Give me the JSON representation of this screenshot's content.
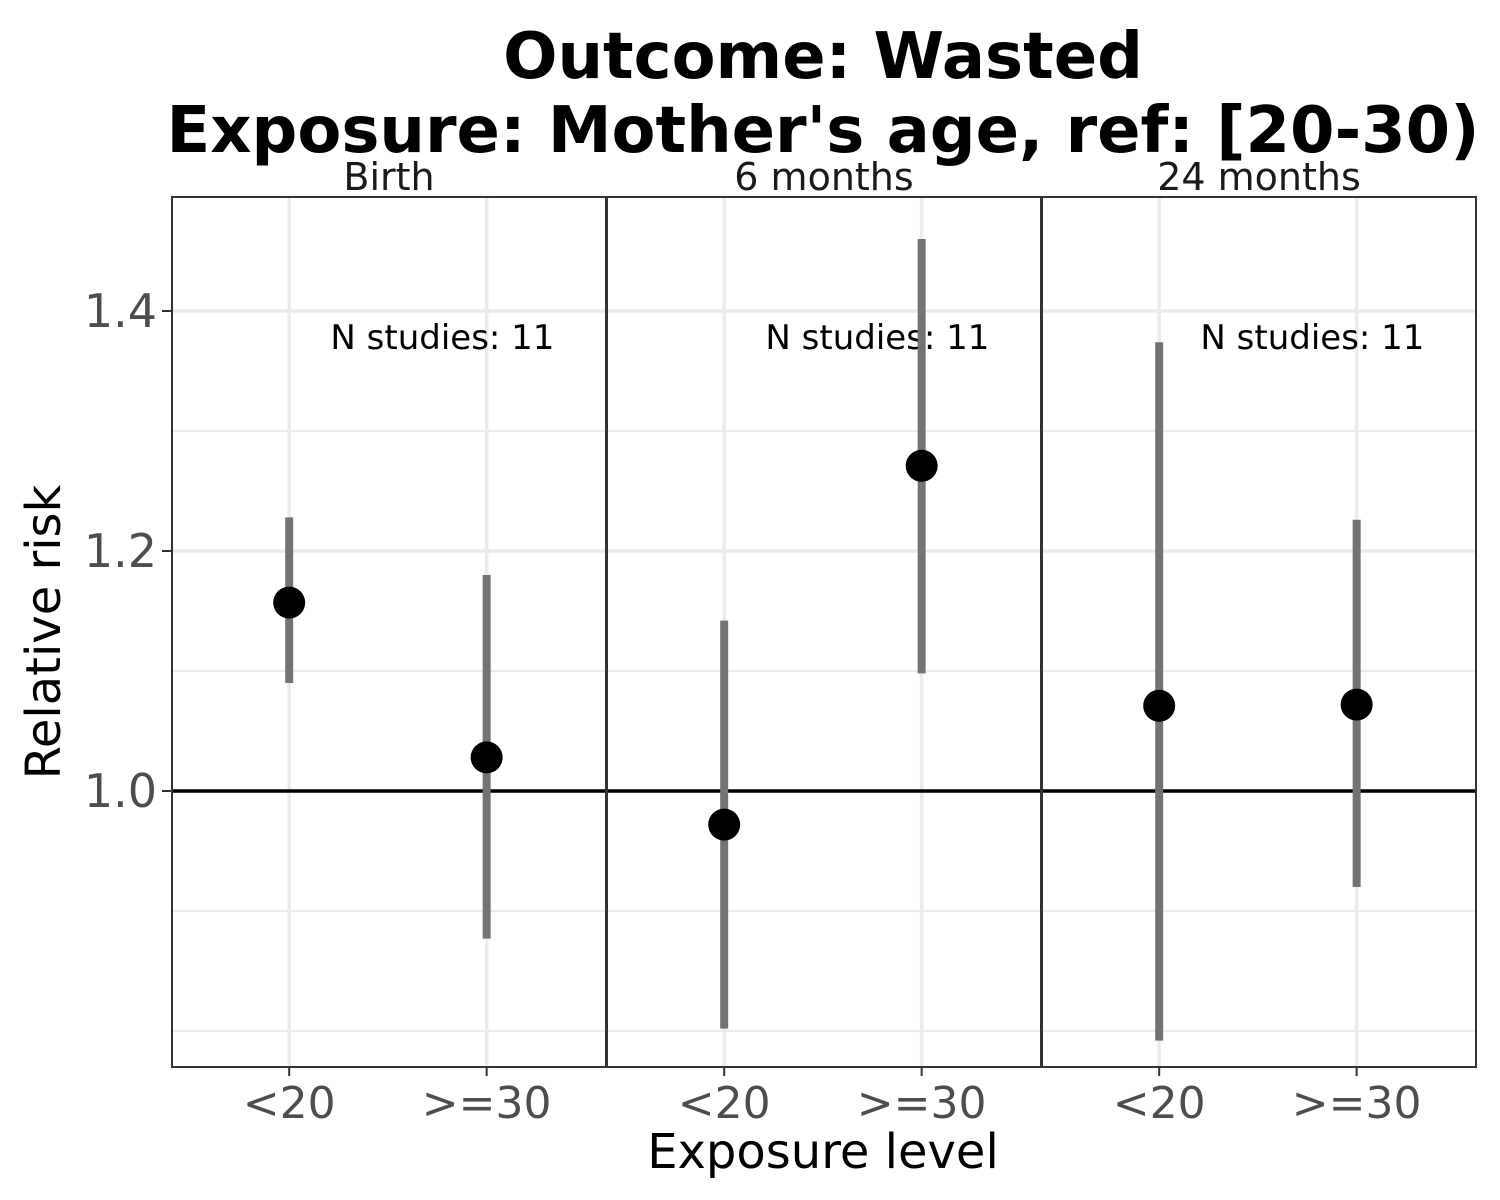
{
  "chart_data": {
    "type": "scatter",
    "title_lines": [
      "Outcome: Wasted",
      "Exposure: Mother's age, ref: [20-30)"
    ],
    "xlabel": "Exposure level",
    "ylabel": "Relative risk",
    "categories": [
      "<20",
      ">=30"
    ],
    "ylim": [
      0.77,
      1.495
    ],
    "yticks": [
      1.0,
      1.2,
      1.4
    ],
    "ytick_labels": [
      "1.0",
      "1.2",
      "1.4"
    ],
    "minor_y": [
      0.8,
      0.9,
      1.1,
      1.3
    ],
    "reference_line": 1.0,
    "grid": true,
    "panels": [
      {
        "label": "Birth",
        "annotation": "N studies: 11",
        "points": [
          {
            "x": "<20",
            "y": 1.157,
            "lower": 1.09,
            "upper": 1.228
          },
          {
            "x": ">=30",
            "y": 1.028,
            "lower": 0.877,
            "upper": 1.18
          }
        ]
      },
      {
        "label": "6 months",
        "annotation": "N studies: 11",
        "points": [
          {
            "x": "<20",
            "y": 0.972,
            "lower": 0.802,
            "upper": 1.142
          },
          {
            "x": ">=30",
            "y": 1.271,
            "lower": 1.098,
            "upper": 1.46
          }
        ]
      },
      {
        "label": "24 months",
        "annotation": "N studies: 11",
        "points": [
          {
            "x": "<20",
            "y": 1.071,
            "lower": 0.792,
            "upper": 1.374
          },
          {
            "x": ">=30",
            "y": 1.072,
            "lower": 0.92,
            "upper": 1.226
          }
        ]
      }
    ],
    "colors": {
      "point": "#000000",
      "errorbar": "#737373",
      "reference_line": "#000000",
      "grid": "#ebebeb",
      "panel_border": "#333333"
    }
  }
}
